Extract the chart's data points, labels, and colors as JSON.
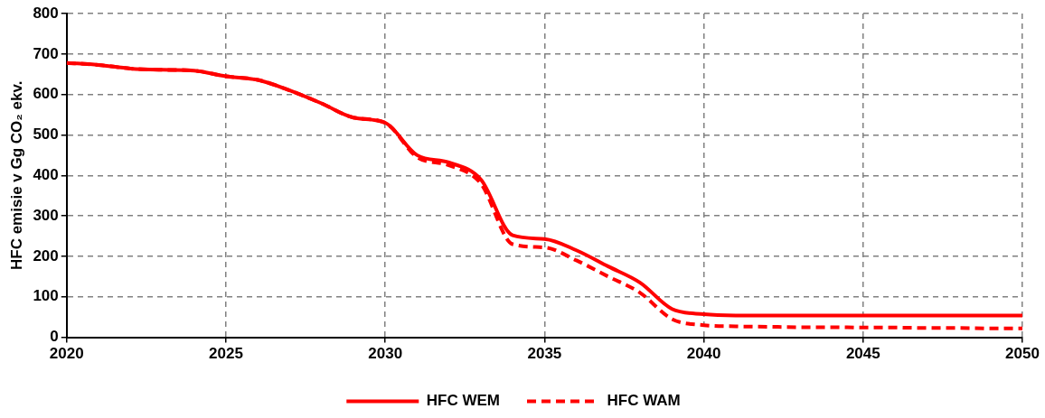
{
  "chart_data": {
    "type": "line",
    "ylabel": "HFC emisie v Gg CO₂ ekv.",
    "x": [
      2020,
      2021,
      2022,
      2023,
      2024,
      2025,
      2026,
      2027,
      2028,
      2029,
      2030,
      2031,
      2032,
      2033,
      2034,
      2035,
      2036,
      2037,
      2038,
      2039,
      2040,
      2041,
      2042,
      2043,
      2044,
      2045,
      2046,
      2047,
      2048,
      2049,
      2050
    ],
    "series": [
      {
        "name": "HFC WEM",
        "color": "#ff0000",
        "line_style": "solid",
        "values": [
          678,
          673,
          664,
          661,
          659,
          645,
          636,
          610,
          578,
          543,
          530,
          450,
          432,
          390,
          252,
          243,
          215,
          175,
          135,
          70,
          57,
          54,
          54,
          54,
          54,
          54,
          54,
          54,
          54,
          54,
          54
        ]
      },
      {
        "name": "HFC WAM",
        "color": "#ff0000",
        "line_style": "dashed",
        "values": [
          678,
          673,
          664,
          661,
          659,
          645,
          636,
          610,
          578,
          543,
          530,
          445,
          425,
          380,
          230,
          222,
          190,
          150,
          110,
          45,
          30,
          27,
          26,
          25,
          25,
          24,
          24,
          23,
          23,
          22,
          22
        ]
      }
    ],
    "xlim": [
      2020,
      2050
    ],
    "xticks": [
      2020,
      2025,
      2030,
      2035,
      2040,
      2045,
      2050
    ],
    "ylim": [
      0,
      800
    ],
    "yticks": [
      0,
      100,
      200,
      300,
      400,
      500,
      600,
      700,
      800
    ],
    "grid": true,
    "legend": "bottom",
    "marker": "none"
  }
}
